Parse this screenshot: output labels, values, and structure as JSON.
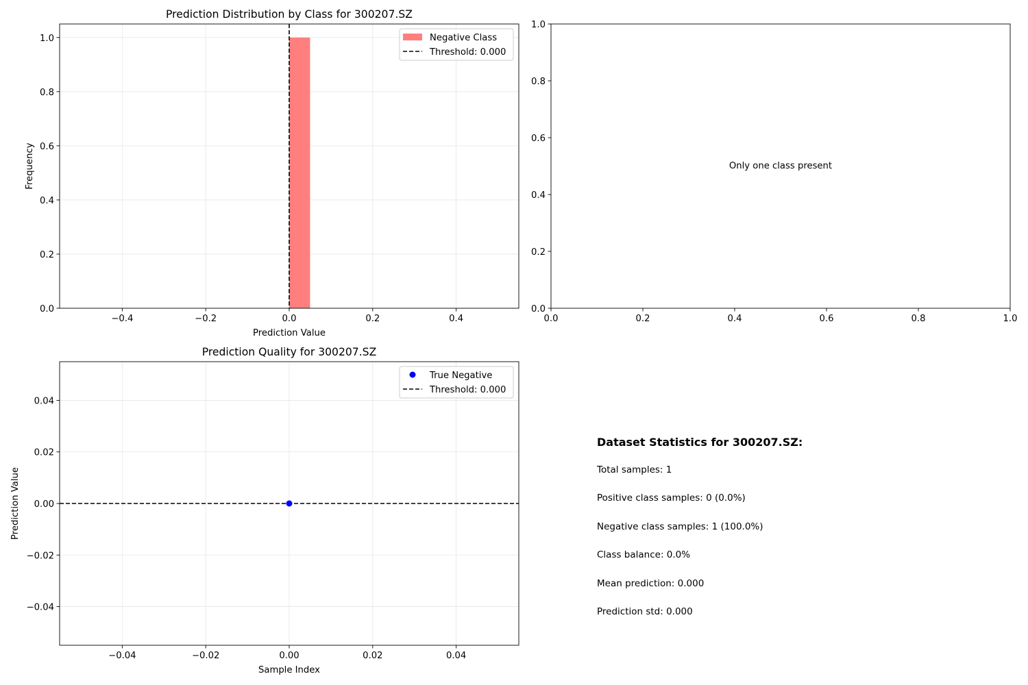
{
  "chart_data": [
    {
      "id": "hist",
      "type": "bar",
      "title": "Prediction Distribution by Class for 300207.SZ",
      "xlabel": "Prediction Value",
      "ylabel": "Frequency",
      "xlim": [
        -0.55,
        0.55
      ],
      "ylim": [
        0,
        1.05
      ],
      "xticks": [
        -0.4,
        -0.2,
        0.0,
        0.2,
        0.4
      ],
      "xtick_labels": [
        "−0.4",
        "−0.2",
        "0.0",
        "0.2",
        "0.4"
      ],
      "yticks": [
        0.0,
        0.2,
        0.4,
        0.6,
        0.8,
        1.0
      ],
      "ytick_labels": [
        "0.0",
        "0.2",
        "0.4",
        "0.6",
        "0.8",
        "1.0"
      ],
      "grid": true,
      "series": [
        {
          "name": "Negative Class",
          "color": "#ff7f7f",
          "bins": [
            {
              "x0": 0.0,
              "x1": 0.05,
              "value": 1.0
            }
          ]
        }
      ],
      "threshold": {
        "value": 0.0,
        "label": "Threshold: 0.000",
        "orientation": "vertical"
      },
      "legend": "top-right"
    },
    {
      "id": "empty",
      "type": "scatter",
      "title": "",
      "xlim": [
        0,
        1
      ],
      "ylim": [
        0,
        1
      ],
      "xticks": [
        0.0,
        0.2,
        0.4,
        0.6,
        0.8,
        1.0
      ],
      "xtick_labels": [
        "0.0",
        "0.2",
        "0.4",
        "0.6",
        "0.8",
        "1.0"
      ],
      "yticks": [
        0.0,
        0.2,
        0.4,
        0.6,
        0.8,
        1.0
      ],
      "ytick_labels": [
        "0.0",
        "0.2",
        "0.4",
        "0.6",
        "0.8",
        "1.0"
      ],
      "grid": false,
      "annotation": {
        "text": "Only one class present",
        "x": 0.5,
        "y": 0.5
      }
    },
    {
      "id": "quality",
      "type": "scatter",
      "title": "Prediction Quality for 300207.SZ",
      "xlabel": "Sample Index",
      "ylabel": "Prediction Value",
      "xlim": [
        -0.055,
        0.055
      ],
      "ylim": [
        -0.055,
        0.055
      ],
      "xticks": [
        -0.04,
        -0.02,
        0.0,
        0.02,
        0.04
      ],
      "xtick_labels": [
        "−0.04",
        "−0.02",
        "0.00",
        "0.02",
        "0.04"
      ],
      "yticks": [
        -0.04,
        -0.02,
        0.0,
        0.02,
        0.04
      ],
      "ytick_labels": [
        "−0.04",
        "−0.02",
        "0.00",
        "0.02",
        "0.04"
      ],
      "grid": true,
      "series": [
        {
          "name": "True Negative",
          "color": "#0000ff",
          "points": [
            {
              "x": 0,
              "y": 0.0
            }
          ]
        }
      ],
      "threshold": {
        "value": 0.0,
        "label": "Threshold: 0.000",
        "orientation": "horizontal"
      },
      "legend": "top-right"
    }
  ],
  "stats": {
    "title": "Dataset Statistics for 300207.SZ:",
    "lines": [
      "Total samples: 1",
      "Positive class samples: 0 (0.0%)",
      "Negative class samples: 1 (100.0%)",
      "Class balance: 0.0%",
      "Mean prediction: 0.000",
      "Prediction std: 0.000"
    ]
  }
}
